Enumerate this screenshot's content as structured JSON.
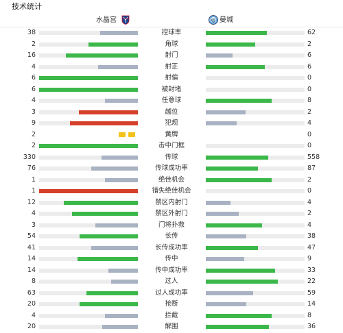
{
  "title": "技术统计",
  "home": {
    "name": "水晶宫",
    "logo_icon": "crystal-palace-crest-icon"
  },
  "away": {
    "name": "曼城",
    "logo_icon": "manchester-city-crest-icon"
  },
  "colors": {
    "win": "#3cb84a",
    "lose": "#a9b2c3",
    "penalty": "#d6402a",
    "track": "#ececec",
    "card": "#f3c21b"
  },
  "stats": [
    {
      "label": "控球率",
      "home": "38",
      "away": "62",
      "hf": 0.38,
      "af": 0.62,
      "hc": "lose",
      "ac": "win"
    },
    {
      "label": "角球",
      "home": "2",
      "away": "2",
      "hf": 0.5,
      "af": 0.5,
      "hc": "win",
      "ac": "win"
    },
    {
      "label": "射门",
      "home": "16",
      "away": "6",
      "hf": 0.73,
      "af": 0.27,
      "hc": "win",
      "ac": "lose"
    },
    {
      "label": "射正",
      "home": "4",
      "away": "6",
      "hf": 0.4,
      "af": 0.6,
      "hc": "lose",
      "ac": "win"
    },
    {
      "label": "射偏",
      "home": "6",
      "away": "0",
      "hf": 1.0,
      "af": 0.0,
      "hc": "win",
      "ac": "lose"
    },
    {
      "label": "被封堵",
      "home": "6",
      "away": "0",
      "hf": 1.0,
      "af": 0.0,
      "hc": "win",
      "ac": "lose"
    },
    {
      "label": "任意球",
      "home": "4",
      "away": "8",
      "hf": 0.33,
      "af": 0.67,
      "hc": "lose",
      "ac": "win"
    },
    {
      "label": "越位",
      "home": "3",
      "away": "2",
      "hf": 0.6,
      "af": 0.4,
      "hc": "penalty",
      "ac": "lose"
    },
    {
      "label": "犯规",
      "home": "9",
      "away": "4",
      "hf": 0.69,
      "af": 0.31,
      "hc": "penalty",
      "ac": "lose"
    },
    {
      "label": "黄牌",
      "home": "2",
      "away": "0",
      "cards": 2
    },
    {
      "label": "击中门框",
      "home": "2",
      "away": "0",
      "hf": 1.0,
      "af": 0.0,
      "hc": "win",
      "ac": "lose"
    },
    {
      "label": "传球",
      "home": "330",
      "away": "558",
      "hf": 0.37,
      "af": 0.63,
      "hc": "lose",
      "ac": "win"
    },
    {
      "label": "传球成功率",
      "home": "76",
      "away": "87",
      "hf": 0.47,
      "af": 0.53,
      "hc": "lose",
      "ac": "win"
    },
    {
      "label": "绝佳机会",
      "home": "1",
      "away": "2",
      "hf": 0.33,
      "af": 0.67,
      "hc": "lose",
      "ac": "win"
    },
    {
      "label": "错失绝佳机会",
      "home": "1",
      "away": "0",
      "hf": 1.0,
      "af": 0.0,
      "hc": "penalty",
      "ac": "lose"
    },
    {
      "label": "禁区内射门",
      "home": "12",
      "away": "4",
      "hf": 0.75,
      "af": 0.25,
      "hc": "win",
      "ac": "lose"
    },
    {
      "label": "禁区外射门",
      "home": "4",
      "away": "2",
      "hf": 0.67,
      "af": 0.33,
      "hc": "win",
      "ac": "lose"
    },
    {
      "label": "门将扑救",
      "home": "3",
      "away": "4",
      "hf": 0.43,
      "af": 0.57,
      "hc": "lose",
      "ac": "win"
    },
    {
      "label": "长传",
      "home": "54",
      "away": "38",
      "hf": 0.59,
      "af": 0.41,
      "hc": "win",
      "ac": "lose"
    },
    {
      "label": "长传成功率",
      "home": "41",
      "away": "47",
      "hf": 0.47,
      "af": 0.53,
      "hc": "lose",
      "ac": "win"
    },
    {
      "label": "传中",
      "home": "14",
      "away": "9",
      "hf": 0.61,
      "af": 0.39,
      "hc": "win",
      "ac": "lose"
    },
    {
      "label": "传中成功率",
      "home": "14",
      "away": "33",
      "hf": 0.3,
      "af": 0.7,
      "hc": "lose",
      "ac": "win"
    },
    {
      "label": "过人",
      "home": "8",
      "away": "22",
      "hf": 0.27,
      "af": 0.73,
      "hc": "lose",
      "ac": "win"
    },
    {
      "label": "过人成功率",
      "home": "63",
      "away": "59",
      "hf": 0.52,
      "af": 0.48,
      "hc": "win",
      "ac": "lose"
    },
    {
      "label": "抢断",
      "home": "20",
      "away": "14",
      "hf": 0.59,
      "af": 0.41,
      "hc": "win",
      "ac": "lose"
    },
    {
      "label": "拦截",
      "home": "4",
      "away": "8",
      "hf": 0.33,
      "af": 0.67,
      "hc": "lose",
      "ac": "win"
    },
    {
      "label": "解围",
      "home": "20",
      "away": "36",
      "hf": 0.36,
      "af": 0.64,
      "hc": "lose",
      "ac": "win"
    }
  ]
}
